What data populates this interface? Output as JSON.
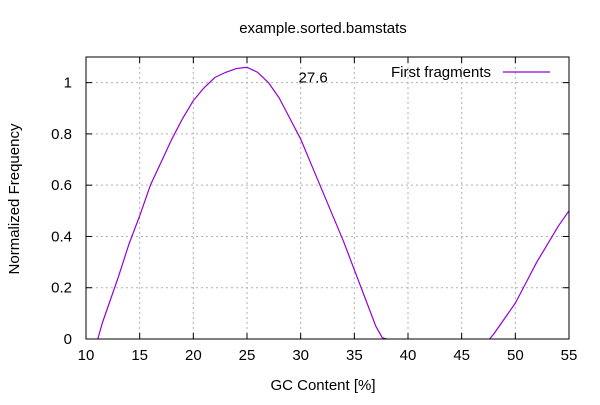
{
  "chart_data": {
    "type": "line",
    "title": "example.sorted.bamstats",
    "xlabel": "GC Content [%]",
    "ylabel": "Normalized Frequency",
    "xlim": [
      10,
      55
    ],
    "ylim": [
      0,
      1.1
    ],
    "xticks": [
      10,
      15,
      20,
      25,
      30,
      35,
      40,
      45,
      50,
      55
    ],
    "yticks": [
      0,
      0.2,
      0.4,
      0.6,
      0.8,
      1
    ],
    "ytick_labels": [
      "0",
      "0.2",
      "0.4",
      "0.6",
      "0.8",
      "1"
    ],
    "grid": true,
    "legend_position": "top-right",
    "annotation": {
      "text": "27.6",
      "x": 29.8,
      "y": 1.0
    },
    "series": [
      {
        "name": "First fragments",
        "color": "#9400d3",
        "segments": [
          [
            [
              11.1,
              0.0
            ],
            [
              11.5,
              0.06
            ],
            [
              12,
              0.12
            ],
            [
              13,
              0.24
            ],
            [
              14,
              0.37
            ],
            [
              15,
              0.48
            ],
            [
              16,
              0.6
            ],
            [
              17,
              0.69
            ],
            [
              18,
              0.78
            ],
            [
              19,
              0.86
            ],
            [
              20,
              0.93
            ],
            [
              21,
              0.98
            ],
            [
              22,
              1.02
            ],
            [
              23,
              1.04
            ],
            [
              24,
              1.055
            ],
            [
              25,
              1.06
            ],
            [
              26,
              1.04
            ],
            [
              27,
              1.0
            ],
            [
              28,
              0.94
            ],
            [
              29,
              0.86
            ],
            [
              30,
              0.78
            ],
            [
              31,
              0.68
            ],
            [
              32,
              0.58
            ],
            [
              33,
              0.48
            ],
            [
              34,
              0.38
            ],
            [
              35,
              0.27
            ],
            [
              36,
              0.16
            ],
            [
              37,
              0.05
            ],
            [
              37.6,
              0.005
            ],
            [
              38.0,
              0.0
            ]
          ],
          [
            [
              47.6,
              0.0
            ],
            [
              48,
              0.02
            ],
            [
              49,
              0.08
            ],
            [
              50,
              0.14
            ],
            [
              51,
              0.22
            ],
            [
              52,
              0.3
            ],
            [
              53,
              0.37
            ],
            [
              54,
              0.44
            ],
            [
              55,
              0.5
            ]
          ]
        ]
      }
    ]
  }
}
